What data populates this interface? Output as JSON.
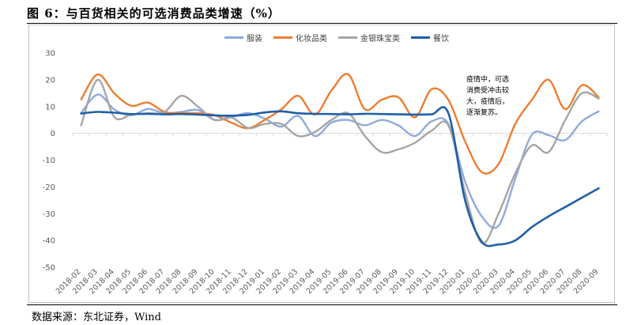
{
  "figure": {
    "title": "图 6：与百货相关的可选消费品类增速（%）",
    "source": "数据来源：东北证券，Wind"
  },
  "chart_data": {
    "type": "line",
    "ylim": [
      -50,
      30
    ],
    "yticks": [
      30,
      20,
      10,
      0,
      -10,
      -20,
      -30,
      -40,
      -50
    ],
    "grid": false,
    "legend_position": "top",
    "annotation": "疫情中，可选消费受冲击较大，疫情后，逐渐复苏。",
    "x": [
      "2018-02",
      "2018-03",
      "2018-04",
      "2018-05",
      "2018-06",
      "2018-07",
      "2018-08",
      "2018-09",
      "2018-10",
      "2018-11",
      "2018-12",
      "2019-01",
      "2019-02",
      "2019-03",
      "2019-04",
      "2019-05",
      "2019-06",
      "2019-07",
      "2019-08",
      "2019-09",
      "2019-10",
      "2019-11",
      "2019-12",
      "2020-01",
      "2020-02",
      "2020-03",
      "2020-04",
      "2020-05",
      "2020-06",
      "2020-07",
      "2020-08",
      "2020-09"
    ],
    "series": [
      {
        "name": "服装",
        "color": "#8faadc",
        "values": [
          7.6,
          14.5,
          8.9,
          6.7,
          9.1,
          7.5,
          8.0,
          8.7,
          5.0,
          6.0,
          7.6,
          5.5,
          2.5,
          6.5,
          -1.0,
          4.0,
          5.0,
          3.0,
          5.0,
          3.0,
          -1.0,
          4.5,
          3.5,
          -18.0,
          -31.0,
          -34.5,
          -17.0,
          -0.5,
          -0.7,
          -2.5,
          4.5,
          8.2
        ]
      },
      {
        "name": "化妆品类",
        "color": "#ed7d31",
        "values": [
          12.6,
          22.0,
          14.9,
          10.3,
          11.5,
          8.0,
          7.6,
          7.5,
          6.8,
          4.0,
          1.9,
          5.0,
          9.0,
          14.0,
          7.0,
          16.0,
          22.0,
          9.0,
          12.5,
          13.5,
          6.0,
          16.5,
          12.5,
          -3.0,
          -14.5,
          -11.5,
          3.5,
          12.5,
          20.0,
          9.0,
          18.0,
          13.5
        ]
      },
      {
        "name": "金银珠宝类",
        "color": "#a5a5a5",
        "values": [
          3.0,
          20.0,
          6.0,
          7.0,
          7.5,
          8.0,
          14.0,
          10.0,
          5.0,
          6.0,
          2.0,
          3.5,
          3.5,
          -1.0,
          0.5,
          5.0,
          7.5,
          -1.0,
          -7.0,
          -6.0,
          -3.5,
          1.0,
          3.0,
          -22.0,
          -41.0,
          -30.0,
          -15.0,
          -4.5,
          -7.0,
          5.0,
          15.0,
          13.0
        ]
      },
      {
        "name": "餐饮",
        "color": "#1f5fa6",
        "values": [
          7.4,
          8.0,
          7.7,
          7.2,
          7.3,
          7.1,
          7.2,
          7.0,
          6.7,
          6.6,
          6.9,
          7.8,
          8.2,
          7.5,
          7.3,
          7.2,
          7.1,
          7.3,
          7.2,
          7.1,
          7.0,
          7.1,
          7.5,
          -25.0,
          -40.5,
          -41.5,
          -40.0,
          -35.0,
          -31.0,
          -27.5,
          -24.0,
          -20.5
        ]
      }
    ]
  }
}
